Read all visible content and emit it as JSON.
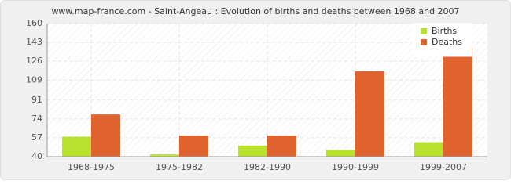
{
  "chart_data": {
    "type": "bar",
    "title": "www.map-france.com - Saint-Angeau : Evolution of births and deaths between 1968 and 2007",
    "categories": [
      "1968-1975",
      "1975-1982",
      "1982-1990",
      "1990-1999",
      "1999-2007"
    ],
    "series": [
      {
        "name": "Births",
        "color": "#b8e02c",
        "values": [
          58,
          42,
          50,
          46,
          53
        ]
      },
      {
        "name": "Deaths",
        "color": "#e0622e",
        "values": [
          78,
          59,
          59,
          117,
          138
        ]
      }
    ],
    "ylim": [
      40,
      160
    ],
    "yticks": [
      40,
      57,
      74,
      91,
      109,
      126,
      143,
      160
    ],
    "grid": true,
    "legend": "top-right"
  }
}
